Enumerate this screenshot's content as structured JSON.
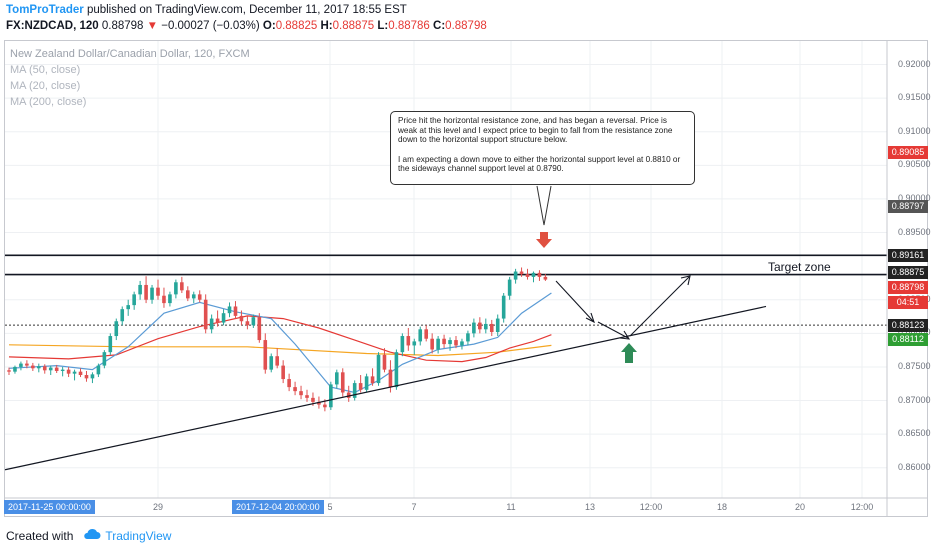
{
  "header": {
    "author": "TomProTrader",
    "publish_text": " published on TradingView.com, December 11, 2017 18:55 EST",
    "symbol": "FX:NZDCAD, 120",
    "last": "0.88798",
    "arrow": "▼",
    "change": "−0.00027 (−0.03%)",
    "o_label": "O:",
    "o": "0.88825",
    "h_label": "H:",
    "h": "0.88875",
    "l_label": "L:",
    "l": "0.88786",
    "c_label": "C:",
    "c": "0.88798"
  },
  "legend": {
    "title": "New Zealand Dollar/Canadian Dollar, 120, FXCM",
    "ma1": "MA (50, close)",
    "ma2": "MA (20, close)",
    "ma3": "MA (200, close)"
  },
  "note": {
    "p1": "Price hit the horizontal resistance zone, and has began a reversal. Price is weak at this level and I expect price to begin to fall from the resistance zone down to the horizontal support structure below.",
    "p2": "I am expecting a down move to either the horizontal support level at 0.8810 or the sideways channel support level at 0.8790."
  },
  "annotation": {
    "target_zone": "Target zone"
  },
  "price_tags": {
    "t1": {
      "text": "0.89085",
      "bg": "#e53935"
    },
    "t2": {
      "text": "0.88797",
      "bg": "#555555"
    },
    "t3": {
      "text": "0.89161",
      "bg": "#222222"
    },
    "t4": {
      "text": "0.88875",
      "bg": "#222222"
    },
    "t5": {
      "text": "0.88798",
      "bg": "#e53935"
    },
    "t6": {
      "text": "04:51",
      "bg": "#e53935"
    },
    "t7": {
      "text": "0.88123",
      "bg": "#222222"
    },
    "t8": {
      "text": "0.88112",
      "bg": "#2e9e33"
    }
  },
  "time_tags": {
    "start": "2017-11-25 00:00:00",
    "mid": "2017-12-04 20:00:00"
  },
  "footer": {
    "created_with": "Created with",
    "brand": "TradingView"
  },
  "colors": {
    "candle_up": "#26a69a",
    "candle_down": "#e05050",
    "ma50": "#e53935",
    "ma20": "#5b9bd5",
    "ma200": "#f5a623",
    "up_arrow": "#2e8b57",
    "down_arrow": "#e05040",
    "line": "#131722"
  },
  "chart_data": {
    "type": "candlestick",
    "title": "New Zealand Dollar/Canadian Dollar, 120, FXCM",
    "x_ticks": [
      "29",
      "5",
      "7",
      "11",
      "13",
      "12:00",
      "18",
      "20",
      "12:00"
    ],
    "y_ticks": [
      0.92,
      0.915,
      0.91,
      0.905,
      0.9,
      0.895,
      0.885,
      0.88,
      0.875,
      0.87,
      0.865,
      0.86
    ],
    "ylim": [
      0.8555,
      0.9235
    ],
    "resistance_levels": [
      0.89161,
      0.88875
    ],
    "support_level": 0.88123,
    "candles": [
      [
        0.8745,
        0.8749,
        0.8738,
        0.8743
      ],
      [
        0.8743,
        0.8752,
        0.874,
        0.875
      ],
      [
        0.875,
        0.8758,
        0.8745,
        0.8755
      ],
      [
        0.8755,
        0.876,
        0.8748,
        0.8752
      ],
      [
        0.8752,
        0.8756,
        0.8744,
        0.8748
      ],
      [
        0.8748,
        0.8755,
        0.8742,
        0.8751
      ],
      [
        0.8751,
        0.8754,
        0.874,
        0.8745
      ],
      [
        0.8745,
        0.8752,
        0.8738,
        0.8749
      ],
      [
        0.8749,
        0.8753,
        0.8741,
        0.8744
      ],
      [
        0.8744,
        0.875,
        0.8736,
        0.8746
      ],
      [
        0.8746,
        0.875,
        0.8735,
        0.874
      ],
      [
        0.874,
        0.8746,
        0.873,
        0.8743
      ],
      [
        0.8743,
        0.8748,
        0.8735,
        0.8738
      ],
      [
        0.8738,
        0.8744,
        0.8728,
        0.8733
      ],
      [
        0.8733,
        0.8742,
        0.8726,
        0.8739
      ],
      [
        0.8739,
        0.8755,
        0.8735,
        0.8752
      ],
      [
        0.8752,
        0.8775,
        0.8748,
        0.8772
      ],
      [
        0.8772,
        0.88,
        0.8768,
        0.8796
      ],
      [
        0.8796,
        0.8822,
        0.879,
        0.8818
      ],
      [
        0.8818,
        0.884,
        0.8812,
        0.8836
      ],
      [
        0.8836,
        0.885,
        0.8826,
        0.8842
      ],
      [
        0.8842,
        0.8862,
        0.8835,
        0.8858
      ],
      [
        0.8858,
        0.8878,
        0.885,
        0.8872
      ],
      [
        0.8872,
        0.8885,
        0.8845,
        0.885
      ],
      [
        0.885,
        0.8872,
        0.8844,
        0.8868
      ],
      [
        0.8868,
        0.888,
        0.885,
        0.8856
      ],
      [
        0.8856,
        0.8868,
        0.8838,
        0.8845
      ],
      [
        0.8845,
        0.8862,
        0.884,
        0.8858
      ],
      [
        0.8858,
        0.888,
        0.8852,
        0.8876
      ],
      [
        0.8876,
        0.8884,
        0.886,
        0.8864
      ],
      [
        0.8864,
        0.887,
        0.8848,
        0.8852
      ],
      [
        0.8852,
        0.8862,
        0.8845,
        0.8858
      ],
      [
        0.8858,
        0.8864,
        0.8846,
        0.885
      ],
      [
        0.885,
        0.8858,
        0.88,
        0.8806
      ],
      [
        0.8806,
        0.8828,
        0.88,
        0.8822
      ],
      [
        0.8822,
        0.8834,
        0.881,
        0.8816
      ],
      [
        0.8816,
        0.8836,
        0.8812,
        0.883
      ],
      [
        0.883,
        0.8846,
        0.8824,
        0.884
      ],
      [
        0.884,
        0.8848,
        0.8822,
        0.8826
      ],
      [
        0.8826,
        0.8834,
        0.8812,
        0.8818
      ],
      [
        0.8818,
        0.8826,
        0.8806,
        0.8812
      ],
      [
        0.8812,
        0.8828,
        0.8808,
        0.8824
      ],
      [
        0.8824,
        0.883,
        0.8786,
        0.879
      ],
      [
        0.879,
        0.88,
        0.874,
        0.8746
      ],
      [
        0.8746,
        0.877,
        0.8742,
        0.8766
      ],
      [
        0.8766,
        0.8778,
        0.8748,
        0.8752
      ],
      [
        0.8752,
        0.876,
        0.8726,
        0.8732
      ],
      [
        0.8732,
        0.874,
        0.8714,
        0.872
      ],
      [
        0.872,
        0.8728,
        0.8708,
        0.8714
      ],
      [
        0.8714,
        0.8722,
        0.8702,
        0.8708
      ],
      [
        0.8708,
        0.8716,
        0.8698,
        0.8704
      ],
      [
        0.8704,
        0.8712,
        0.8692,
        0.8698
      ],
      [
        0.8698,
        0.8706,
        0.8688,
        0.8694
      ],
      [
        0.8694,
        0.8702,
        0.8684,
        0.869
      ],
      [
        0.869,
        0.8728,
        0.8686,
        0.8724
      ],
      [
        0.8724,
        0.8746,
        0.8718,
        0.8742
      ],
      [
        0.8742,
        0.8748,
        0.8706,
        0.8712
      ],
      [
        0.8712,
        0.8722,
        0.8698,
        0.8704
      ],
      [
        0.8704,
        0.873,
        0.87,
        0.8726
      ],
      [
        0.8726,
        0.8738,
        0.8712,
        0.8716
      ],
      [
        0.8716,
        0.874,
        0.8712,
        0.8736
      ],
      [
        0.8736,
        0.8748,
        0.8722,
        0.8726
      ],
      [
        0.8726,
        0.8772,
        0.8722,
        0.8768
      ],
      [
        0.8768,
        0.8778,
        0.8742,
        0.8746
      ],
      [
        0.8746,
        0.876,
        0.8712,
        0.872
      ],
      [
        0.872,
        0.8776,
        0.8716,
        0.8772
      ],
      [
        0.8772,
        0.88,
        0.8766,
        0.8796
      ],
      [
        0.8796,
        0.8808,
        0.8774,
        0.8782
      ],
      [
        0.8782,
        0.8792,
        0.8768,
        0.8788
      ],
      [
        0.8788,
        0.881,
        0.8782,
        0.8806
      ],
      [
        0.8806,
        0.8812,
        0.8788,
        0.8792
      ],
      [
        0.8792,
        0.88,
        0.877,
        0.8776
      ],
      [
        0.8776,
        0.8796,
        0.877,
        0.8792
      ],
      [
        0.8792,
        0.8798,
        0.8778,
        0.8784
      ],
      [
        0.8784,
        0.8794,
        0.8774,
        0.879
      ],
      [
        0.879,
        0.8796,
        0.8778,
        0.8782
      ],
      [
        0.8782,
        0.8792,
        0.8776,
        0.8788
      ],
      [
        0.8788,
        0.8804,
        0.8782,
        0.88
      ],
      [
        0.88,
        0.8822,
        0.8794,
        0.8816
      ],
      [
        0.8816,
        0.8824,
        0.88,
        0.8806
      ],
      [
        0.8806,
        0.8822,
        0.88,
        0.8814
      ],
      [
        0.8814,
        0.882,
        0.8796,
        0.8802
      ],
      [
        0.8802,
        0.8828,
        0.8796,
        0.8822
      ],
      [
        0.8822,
        0.886,
        0.8816,
        0.8856
      ],
      [
        0.8856,
        0.8884,
        0.885,
        0.888
      ],
      [
        0.888,
        0.8896,
        0.8874,
        0.8892
      ],
      [
        0.8892,
        0.8898,
        0.8884,
        0.8888
      ],
      [
        0.8888,
        0.8896,
        0.888,
        0.8884
      ],
      [
        0.8884,
        0.8892,
        0.8876,
        0.889
      ],
      [
        0.889,
        0.8894,
        0.8878,
        0.8884
      ],
      [
        0.8884,
        0.8888,
        0.8878,
        0.888
      ]
    ],
    "ma50": [
      [
        0,
        0.8765
      ],
      [
        10,
        0.8762
      ],
      [
        18,
        0.8768
      ],
      [
        25,
        0.8792
      ],
      [
        32,
        0.881
      ],
      [
        40,
        0.8826
      ],
      [
        46,
        0.8822
      ],
      [
        52,
        0.8808
      ],
      [
        58,
        0.879
      ],
      [
        64,
        0.8772
      ],
      [
        70,
        0.876
      ],
      [
        76,
        0.8758
      ],
      [
        80,
        0.8764
      ],
      [
        84,
        0.8778
      ],
      [
        88,
        0.8788
      ],
      [
        91,
        0.8798
      ]
    ],
    "ma20": [
      [
        0,
        0.8748
      ],
      [
        8,
        0.8752
      ],
      [
        14,
        0.8746
      ],
      [
        20,
        0.878
      ],
      [
        26,
        0.883
      ],
      [
        32,
        0.8846
      ],
      [
        38,
        0.8832
      ],
      [
        44,
        0.8822
      ],
      [
        48,
        0.8784
      ],
      [
        54,
        0.872
      ],
      [
        58,
        0.8712
      ],
      [
        62,
        0.873
      ],
      [
        66,
        0.8754
      ],
      [
        72,
        0.8776
      ],
      [
        78,
        0.8784
      ],
      [
        82,
        0.8794
      ],
      [
        86,
        0.883
      ],
      [
        91,
        0.886
      ]
    ],
    "ma200": [
      [
        0,
        0.8783
      ],
      [
        20,
        0.878
      ],
      [
        40,
        0.878
      ],
      [
        60,
        0.877
      ],
      [
        72,
        0.8767
      ],
      [
        82,
        0.8772
      ],
      [
        91,
        0.8782
      ]
    ],
    "trendline": [
      [
        0.8597,
        0.884
      ]
    ]
  }
}
